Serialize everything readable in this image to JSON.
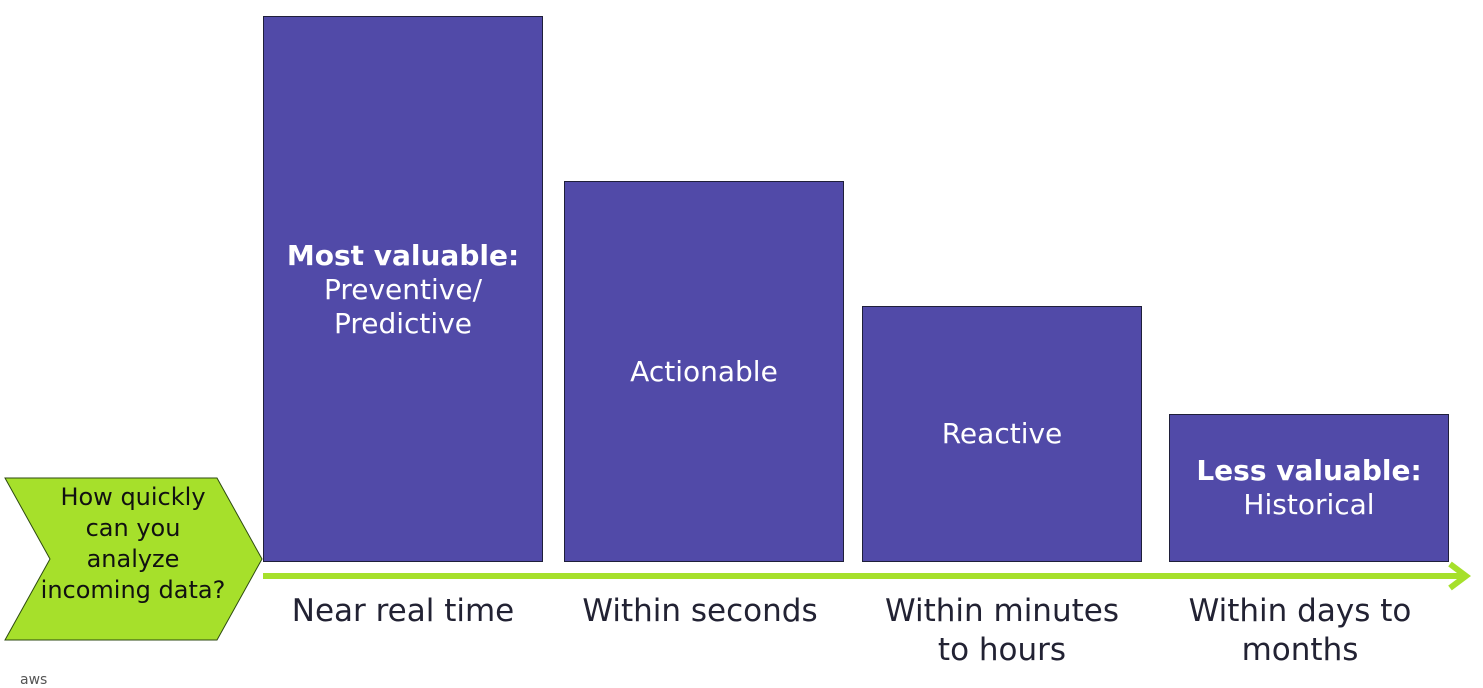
{
  "question": "How quickly can you analyze incoming data?",
  "colors": {
    "bar_fill": "#514aa8",
    "chevron_fill": "#a6e02b",
    "arrow": "#a6e02b",
    "text_dark": "#222233"
  },
  "bars": [
    {
      "bold": "Most valuable:",
      "label": "Preventive/\nPredictive",
      "relative_value": 1.0
    },
    {
      "bold": "",
      "label": "Actionable",
      "relative_value": 0.7
    },
    {
      "bold": "",
      "label": "Reactive",
      "relative_value": 0.47
    },
    {
      "bold": "Less valuable:",
      "label": "Historical",
      "relative_value": 0.27
    }
  ],
  "time_labels": [
    "Near real time",
    "Within seconds",
    "Within minutes\nto hours",
    "Within days to\nmonths"
  ],
  "footer": "aws"
}
